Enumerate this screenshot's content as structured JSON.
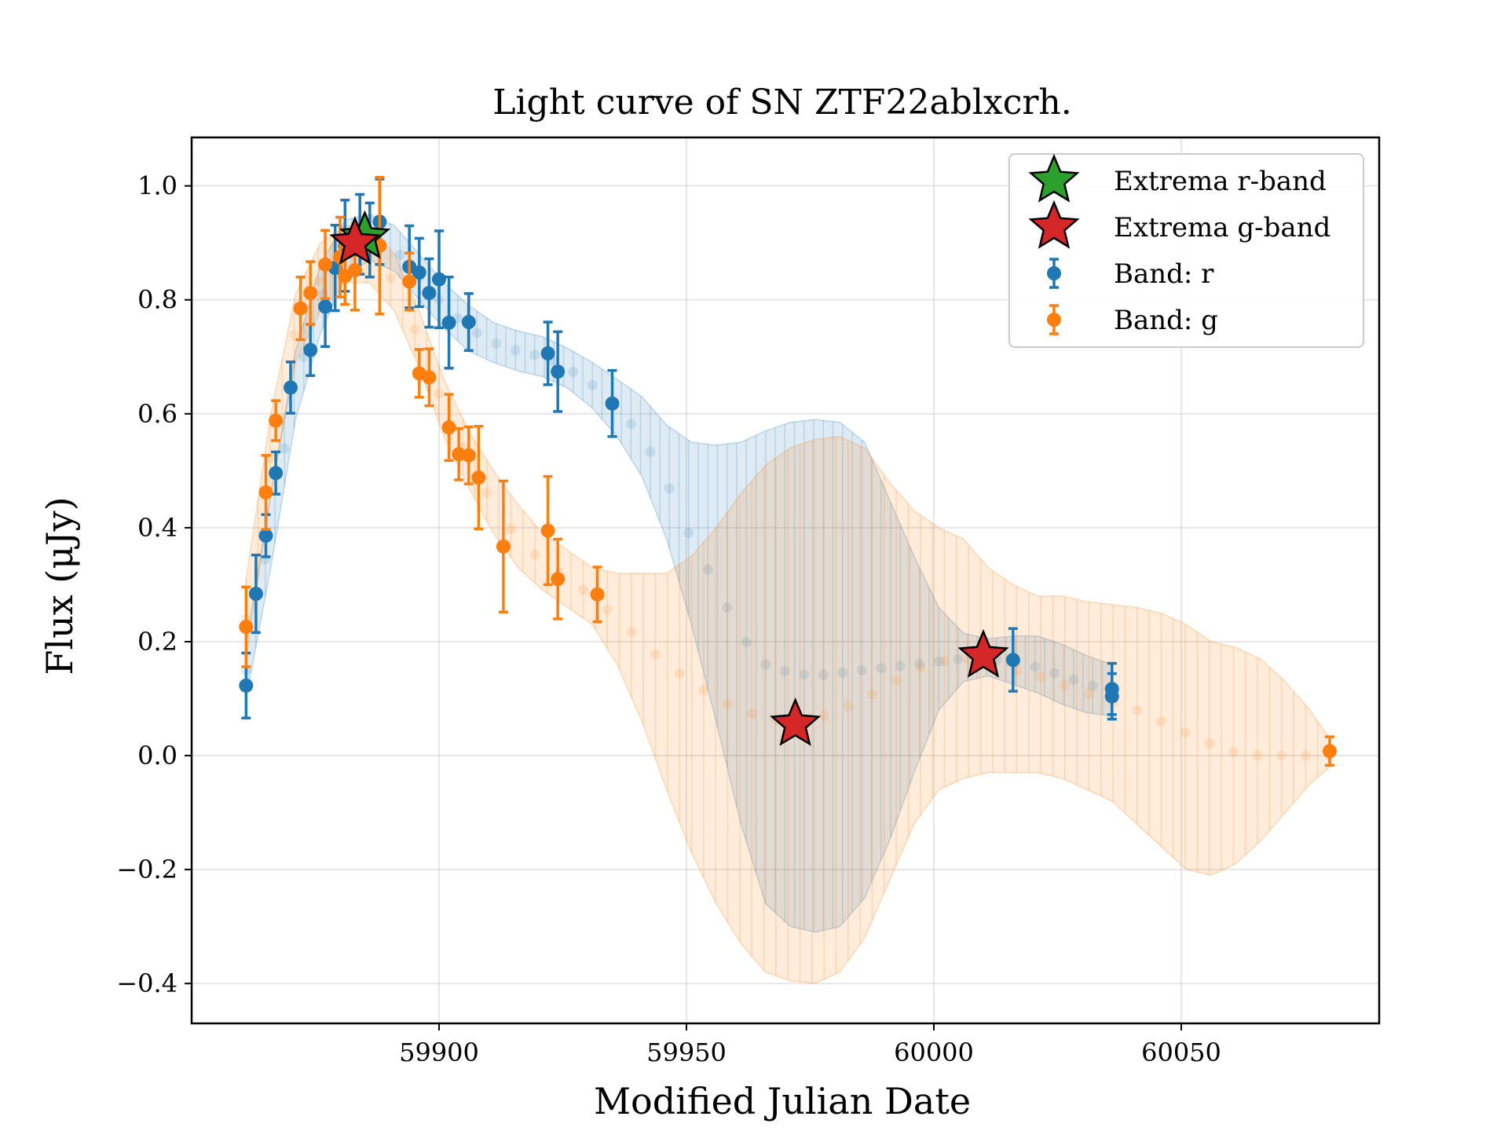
{
  "chart_data": {
    "type": "scatter",
    "title": "Light curve of SN ZTF22ablxcrh.",
    "xlabel": "Modified Julian Date",
    "ylabel": "Flux (μJy)",
    "xlim": [
      59850,
      60090
    ],
    "ylim": [
      -0.47,
      1.085
    ],
    "x_ticks": [
      59900,
      59950,
      60000,
      60050
    ],
    "x_tick_labels": [
      "59900",
      "59950",
      "60000",
      "60050"
    ],
    "y_ticks": [
      -0.4,
      -0.2,
      0.0,
      0.2,
      0.4,
      0.6,
      0.8,
      1.0
    ],
    "y_tick_labels": [
      "−0.4",
      "−0.2",
      "0.0",
      "0.2",
      "0.4",
      "0.6",
      "0.8",
      "1.0"
    ],
    "grid": true,
    "legend_position": "top-right",
    "colors": {
      "r": "#1f77b4",
      "g": "#ff7f0e",
      "extrema_r": "#2ca02c",
      "extrema_g": "#d62728"
    },
    "series": [
      {
        "name": "Band: r",
        "band": "r",
        "points": [
          {
            "x": 59861,
            "y": 0.123,
            "err": 0.057
          },
          {
            "x": 59863,
            "y": 0.284,
            "err": 0.068
          },
          {
            "x": 59865,
            "y": 0.386,
            "err": 0.037
          },
          {
            "x": 59867,
            "y": 0.496,
            "err": 0.037
          },
          {
            "x": 59870,
            "y": 0.646,
            "err": 0.045
          },
          {
            "x": 59874,
            "y": 0.712,
            "err": 0.045
          },
          {
            "x": 59877,
            "y": 0.788,
            "err": 0.07
          },
          {
            "x": 59879,
            "y": 0.856,
            "err": 0.075
          },
          {
            "x": 59881,
            "y": 0.895,
            "err": 0.08
          },
          {
            "x": 59884,
            "y": 0.915,
            "err": 0.07
          },
          {
            "x": 59886,
            "y": 0.905,
            "err": 0.065
          },
          {
            "x": 59888,
            "y": 0.937,
            "err": 0.075
          },
          {
            "x": 59894,
            "y": 0.858,
            "err": 0.072
          },
          {
            "x": 59896,
            "y": 0.848,
            "err": 0.06
          },
          {
            "x": 59898,
            "y": 0.812,
            "err": 0.06
          },
          {
            "x": 59900,
            "y": 0.836,
            "err": 0.085
          },
          {
            "x": 59902,
            "y": 0.76,
            "err": 0.08
          },
          {
            "x": 59906,
            "y": 0.761,
            "err": 0.05
          },
          {
            "x": 59922,
            "y": 0.706,
            "err": 0.055
          },
          {
            "x": 59924,
            "y": 0.674,
            "err": 0.07
          },
          {
            "x": 59935,
            "y": 0.618,
            "err": 0.058
          },
          {
            "x": 60016,
            "y": 0.168,
            "err": 0.055
          },
          {
            "x": 60036,
            "y": 0.117,
            "err": 0.045
          },
          {
            "x": 60036,
            "y": 0.104,
            "err": 0.04
          }
        ],
        "model": [
          {
            "x": 59861,
            "y": 0.15,
            "lo": 0.1,
            "hi": 0.2
          },
          {
            "x": 59866,
            "y": 0.4,
            "lo": 0.33,
            "hi": 0.46
          },
          {
            "x": 59871,
            "y": 0.65,
            "lo": 0.59,
            "hi": 0.71
          },
          {
            "x": 59876,
            "y": 0.8,
            "lo": 0.74,
            "hi": 0.86
          },
          {
            "x": 59881,
            "y": 0.89,
            "lo": 0.84,
            "hi": 0.94
          },
          {
            "x": 59886,
            "y": 0.91,
            "lo": 0.87,
            "hi": 0.95
          },
          {
            "x": 59891,
            "y": 0.89,
            "lo": 0.85,
            "hi": 0.93
          },
          {
            "x": 59896,
            "y": 0.84,
            "lo": 0.8,
            "hi": 0.88
          },
          {
            "x": 59901,
            "y": 0.79,
            "lo": 0.75,
            "hi": 0.83
          },
          {
            "x": 59906,
            "y": 0.75,
            "lo": 0.71,
            "hi": 0.79
          },
          {
            "x": 59911,
            "y": 0.725,
            "lo": 0.69,
            "hi": 0.76
          },
          {
            "x": 59916,
            "y": 0.71,
            "lo": 0.675,
            "hi": 0.745
          },
          {
            "x": 59921,
            "y": 0.7,
            "lo": 0.665,
            "hi": 0.735
          },
          {
            "x": 59926,
            "y": 0.68,
            "lo": 0.645,
            "hi": 0.715
          },
          {
            "x": 59931,
            "y": 0.65,
            "lo": 0.61,
            "hi": 0.69
          },
          {
            "x": 59936,
            "y": 0.61,
            "lo": 0.56,
            "hi": 0.66
          },
          {
            "x": 59941,
            "y": 0.56,
            "lo": 0.49,
            "hi": 0.63
          },
          {
            "x": 59946,
            "y": 0.48,
            "lo": 0.38,
            "hi": 0.58
          },
          {
            "x": 59951,
            "y": 0.38,
            "lo": 0.23,
            "hi": 0.55
          },
          {
            "x": 59956,
            "y": 0.3,
            "lo": 0.06,
            "hi": 0.545
          },
          {
            "x": 59961,
            "y": 0.21,
            "lo": -0.12,
            "hi": 0.55
          },
          {
            "x": 59966,
            "y": 0.16,
            "lo": -0.26,
            "hi": 0.57
          },
          {
            "x": 59971,
            "y": 0.145,
            "lo": -0.3,
            "hi": 0.585
          },
          {
            "x": 59976,
            "y": 0.14,
            "lo": -0.31,
            "hi": 0.59
          },
          {
            "x": 59981,
            "y": 0.145,
            "lo": -0.3,
            "hi": 0.585
          },
          {
            "x": 59986,
            "y": 0.15,
            "lo": -0.25,
            "hi": 0.55
          },
          {
            "x": 59991,
            "y": 0.155,
            "lo": -0.15,
            "hi": 0.45
          },
          {
            "x": 59996,
            "y": 0.16,
            "lo": -0.03,
            "hi": 0.35
          },
          {
            "x": 60001,
            "y": 0.165,
            "lo": 0.08,
            "hi": 0.26
          },
          {
            "x": 60006,
            "y": 0.17,
            "lo": 0.13,
            "hi": 0.215
          },
          {
            "x": 60011,
            "y": 0.17,
            "lo": 0.14,
            "hi": 0.205
          },
          {
            "x": 60016,
            "y": 0.165,
            "lo": 0.125,
            "hi": 0.21
          },
          {
            "x": 60021,
            "y": 0.155,
            "lo": 0.11,
            "hi": 0.21
          },
          {
            "x": 60026,
            "y": 0.14,
            "lo": 0.09,
            "hi": 0.195
          },
          {
            "x": 60031,
            "y": 0.125,
            "lo": 0.075,
            "hi": 0.175
          },
          {
            "x": 60036,
            "y": 0.115,
            "lo": 0.07,
            "hi": 0.16
          }
        ]
      },
      {
        "name": "Band: g",
        "band": "g",
        "points": [
          {
            "x": 59861,
            "y": 0.226,
            "err": 0.07
          },
          {
            "x": 59865,
            "y": 0.462,
            "err": 0.065
          },
          {
            "x": 59867,
            "y": 0.588,
            "err": 0.035
          },
          {
            "x": 59872,
            "y": 0.785,
            "err": 0.055
          },
          {
            "x": 59874,
            "y": 0.812,
            "err": 0.055
          },
          {
            "x": 59877,
            "y": 0.862,
            "err": 0.06
          },
          {
            "x": 59880,
            "y": 0.875,
            "err": 0.07
          },
          {
            "x": 59881,
            "y": 0.842,
            "err": 0.05
          },
          {
            "x": 59883,
            "y": 0.852,
            "err": 0.07
          },
          {
            "x": 59888,
            "y": 0.895,
            "err": 0.12
          },
          {
            "x": 59894,
            "y": 0.832,
            "err": 0.05
          },
          {
            "x": 59896,
            "y": 0.671,
            "err": 0.042
          },
          {
            "x": 59898,
            "y": 0.664,
            "err": 0.05
          },
          {
            "x": 59902,
            "y": 0.576,
            "err": 0.058
          },
          {
            "x": 59904,
            "y": 0.529,
            "err": 0.045
          },
          {
            "x": 59906,
            "y": 0.527,
            "err": 0.05
          },
          {
            "x": 59908,
            "y": 0.488,
            "err": 0.09
          },
          {
            "x": 59913,
            "y": 0.367,
            "err": 0.115
          },
          {
            "x": 59922,
            "y": 0.395,
            "err": 0.095
          },
          {
            "x": 59924,
            "y": 0.31,
            "err": 0.07
          },
          {
            "x": 59932,
            "y": 0.283,
            "err": 0.048
          },
          {
            "x": 60080,
            "y": 0.008,
            "err": 0.025
          }
        ],
        "model": [
          {
            "x": 59861,
            "y": 0.24,
            "lo": 0.17,
            "hi": 0.31
          },
          {
            "x": 59866,
            "y": 0.53,
            "lo": 0.46,
            "hi": 0.6
          },
          {
            "x": 59871,
            "y": 0.75,
            "lo": 0.69,
            "hi": 0.81
          },
          {
            "x": 59876,
            "y": 0.84,
            "lo": 0.78,
            "hi": 0.9
          },
          {
            "x": 59881,
            "y": 0.88,
            "lo": 0.83,
            "hi": 0.93
          },
          {
            "x": 59886,
            "y": 0.88,
            "lo": 0.83,
            "hi": 0.93
          },
          {
            "x": 59891,
            "y": 0.83,
            "lo": 0.78,
            "hi": 0.88
          },
          {
            "x": 59896,
            "y": 0.73,
            "lo": 0.68,
            "hi": 0.78
          },
          {
            "x": 59901,
            "y": 0.61,
            "lo": 0.56,
            "hi": 0.66
          },
          {
            "x": 59906,
            "y": 0.52,
            "lo": 0.47,
            "hi": 0.57
          },
          {
            "x": 59911,
            "y": 0.44,
            "lo": 0.39,
            "hi": 0.5
          },
          {
            "x": 59916,
            "y": 0.38,
            "lo": 0.33,
            "hi": 0.44
          },
          {
            "x": 59921,
            "y": 0.34,
            "lo": 0.29,
            "hi": 0.39
          },
          {
            "x": 59926,
            "y": 0.31,
            "lo": 0.26,
            "hi": 0.36
          },
          {
            "x": 59931,
            "y": 0.28,
            "lo": 0.23,
            "hi": 0.33
          },
          {
            "x": 59936,
            "y": 0.24,
            "lo": 0.16,
            "hi": 0.32
          },
          {
            "x": 59941,
            "y": 0.2,
            "lo": 0.06,
            "hi": 0.32
          },
          {
            "x": 59946,
            "y": 0.16,
            "lo": -0.06,
            "hi": 0.32
          },
          {
            "x": 59951,
            "y": 0.13,
            "lo": -0.17,
            "hi": 0.35
          },
          {
            "x": 59956,
            "y": 0.1,
            "lo": -0.26,
            "hi": 0.4
          },
          {
            "x": 59961,
            "y": 0.08,
            "lo": -0.33,
            "hi": 0.46
          },
          {
            "x": 59966,
            "y": 0.065,
            "lo": -0.38,
            "hi": 0.51
          },
          {
            "x": 59971,
            "y": 0.06,
            "lo": -0.395,
            "hi": 0.54
          },
          {
            "x": 59976,
            "y": 0.065,
            "lo": -0.4,
            "hi": 0.555
          },
          {
            "x": 59981,
            "y": 0.08,
            "lo": -0.38,
            "hi": 0.56
          },
          {
            "x": 59986,
            "y": 0.1,
            "lo": -0.32,
            "hi": 0.54
          },
          {
            "x": 59991,
            "y": 0.125,
            "lo": -0.22,
            "hi": 0.48
          },
          {
            "x": 59996,
            "y": 0.15,
            "lo": -0.12,
            "hi": 0.43
          },
          {
            "x": 60001,
            "y": 0.165,
            "lo": -0.06,
            "hi": 0.4
          },
          {
            "x": 60006,
            "y": 0.17,
            "lo": -0.04,
            "hi": 0.38
          },
          {
            "x": 60011,
            "y": 0.16,
            "lo": -0.03,
            "hi": 0.33
          },
          {
            "x": 60016,
            "y": 0.15,
            "lo": -0.03,
            "hi": 0.3
          },
          {
            "x": 60021,
            "y": 0.14,
            "lo": -0.03,
            "hi": 0.28
          },
          {
            "x": 60026,
            "y": 0.125,
            "lo": -0.04,
            "hi": 0.28
          },
          {
            "x": 60031,
            "y": 0.11,
            "lo": -0.06,
            "hi": 0.27
          },
          {
            "x": 60036,
            "y": 0.095,
            "lo": -0.08,
            "hi": 0.265
          },
          {
            "x": 60041,
            "y": 0.08,
            "lo": -0.12,
            "hi": 0.26
          },
          {
            "x": 60046,
            "y": 0.06,
            "lo": -0.16,
            "hi": 0.25
          },
          {
            "x": 60051,
            "y": 0.04,
            "lo": -0.2,
            "hi": 0.23
          },
          {
            "x": 60056,
            "y": 0.02,
            "lo": -0.21,
            "hi": 0.2
          },
          {
            "x": 60061,
            "y": 0.005,
            "lo": -0.19,
            "hi": 0.19
          },
          {
            "x": 60066,
            "y": 0.0,
            "lo": -0.15,
            "hi": 0.17
          },
          {
            "x": 60071,
            "y": 0.0,
            "lo": -0.1,
            "hi": 0.13
          },
          {
            "x": 60076,
            "y": 0.0,
            "lo": -0.05,
            "hi": 0.08
          },
          {
            "x": 60080,
            "y": 0.0,
            "lo": -0.02,
            "hi": 0.03
          }
        ]
      }
    ],
    "extrema": [
      {
        "name": "Extrema r-band",
        "band": "r",
        "points": [
          {
            "x": 59885,
            "y": 0.91
          }
        ]
      },
      {
        "name": "Extrema g-band",
        "band": "g",
        "points": [
          {
            "x": 59883,
            "y": 0.9
          },
          {
            "x": 59972,
            "y": 0.055
          },
          {
            "x": 60010,
            "y": 0.175
          }
        ]
      }
    ],
    "legend": [
      {
        "label": "Extrema r-band",
        "marker": "star",
        "color_key": "extrema_r"
      },
      {
        "label": "Extrema g-band",
        "marker": "star",
        "color_key": "extrema_g"
      },
      {
        "label": "Band: r",
        "marker": "errorbar",
        "color_key": "r"
      },
      {
        "label": "Band: g",
        "marker": "errorbar",
        "color_key": "g"
      }
    ]
  }
}
